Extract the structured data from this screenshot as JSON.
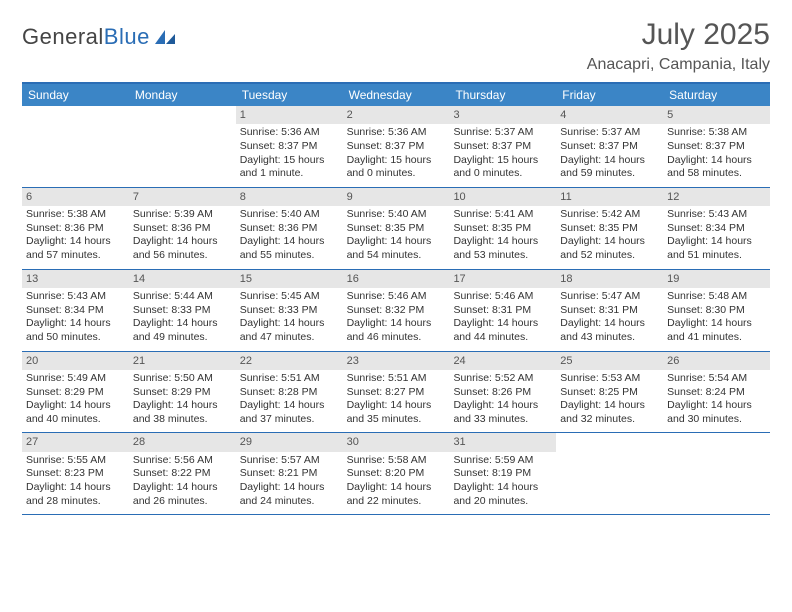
{
  "logo": {
    "text_gray": "General",
    "text_blue": "Blue"
  },
  "title": "July 2025",
  "location": "Anacapri, Campania, Italy",
  "colors": {
    "header_bg": "#3b85c6",
    "rule": "#2a6db5",
    "daynum_bg": "#e6e6e6",
    "text": "#333333",
    "muted": "#555555"
  },
  "weekdays": [
    "Sunday",
    "Monday",
    "Tuesday",
    "Wednesday",
    "Thursday",
    "Friday",
    "Saturday"
  ],
  "weeks": [
    [
      {
        "n": "",
        "sr": "",
        "ss": "",
        "dl": ""
      },
      {
        "n": "",
        "sr": "",
        "ss": "",
        "dl": ""
      },
      {
        "n": "1",
        "sr": "Sunrise: 5:36 AM",
        "ss": "Sunset: 8:37 PM",
        "dl": "Daylight: 15 hours and 1 minute."
      },
      {
        "n": "2",
        "sr": "Sunrise: 5:36 AM",
        "ss": "Sunset: 8:37 PM",
        "dl": "Daylight: 15 hours and 0 minutes."
      },
      {
        "n": "3",
        "sr": "Sunrise: 5:37 AM",
        "ss": "Sunset: 8:37 PM",
        "dl": "Daylight: 15 hours and 0 minutes."
      },
      {
        "n": "4",
        "sr": "Sunrise: 5:37 AM",
        "ss": "Sunset: 8:37 PM",
        "dl": "Daylight: 14 hours and 59 minutes."
      },
      {
        "n": "5",
        "sr": "Sunrise: 5:38 AM",
        "ss": "Sunset: 8:37 PM",
        "dl": "Daylight: 14 hours and 58 minutes."
      }
    ],
    [
      {
        "n": "6",
        "sr": "Sunrise: 5:38 AM",
        "ss": "Sunset: 8:36 PM",
        "dl": "Daylight: 14 hours and 57 minutes."
      },
      {
        "n": "7",
        "sr": "Sunrise: 5:39 AM",
        "ss": "Sunset: 8:36 PM",
        "dl": "Daylight: 14 hours and 56 minutes."
      },
      {
        "n": "8",
        "sr": "Sunrise: 5:40 AM",
        "ss": "Sunset: 8:36 PM",
        "dl": "Daylight: 14 hours and 55 minutes."
      },
      {
        "n": "9",
        "sr": "Sunrise: 5:40 AM",
        "ss": "Sunset: 8:35 PM",
        "dl": "Daylight: 14 hours and 54 minutes."
      },
      {
        "n": "10",
        "sr": "Sunrise: 5:41 AM",
        "ss": "Sunset: 8:35 PM",
        "dl": "Daylight: 14 hours and 53 minutes."
      },
      {
        "n": "11",
        "sr": "Sunrise: 5:42 AM",
        "ss": "Sunset: 8:35 PM",
        "dl": "Daylight: 14 hours and 52 minutes."
      },
      {
        "n": "12",
        "sr": "Sunrise: 5:43 AM",
        "ss": "Sunset: 8:34 PM",
        "dl": "Daylight: 14 hours and 51 minutes."
      }
    ],
    [
      {
        "n": "13",
        "sr": "Sunrise: 5:43 AM",
        "ss": "Sunset: 8:34 PM",
        "dl": "Daylight: 14 hours and 50 minutes."
      },
      {
        "n": "14",
        "sr": "Sunrise: 5:44 AM",
        "ss": "Sunset: 8:33 PM",
        "dl": "Daylight: 14 hours and 49 minutes."
      },
      {
        "n": "15",
        "sr": "Sunrise: 5:45 AM",
        "ss": "Sunset: 8:33 PM",
        "dl": "Daylight: 14 hours and 47 minutes."
      },
      {
        "n": "16",
        "sr": "Sunrise: 5:46 AM",
        "ss": "Sunset: 8:32 PM",
        "dl": "Daylight: 14 hours and 46 minutes."
      },
      {
        "n": "17",
        "sr": "Sunrise: 5:46 AM",
        "ss": "Sunset: 8:31 PM",
        "dl": "Daylight: 14 hours and 44 minutes."
      },
      {
        "n": "18",
        "sr": "Sunrise: 5:47 AM",
        "ss": "Sunset: 8:31 PM",
        "dl": "Daylight: 14 hours and 43 minutes."
      },
      {
        "n": "19",
        "sr": "Sunrise: 5:48 AM",
        "ss": "Sunset: 8:30 PM",
        "dl": "Daylight: 14 hours and 41 minutes."
      }
    ],
    [
      {
        "n": "20",
        "sr": "Sunrise: 5:49 AM",
        "ss": "Sunset: 8:29 PM",
        "dl": "Daylight: 14 hours and 40 minutes."
      },
      {
        "n": "21",
        "sr": "Sunrise: 5:50 AM",
        "ss": "Sunset: 8:29 PM",
        "dl": "Daylight: 14 hours and 38 minutes."
      },
      {
        "n": "22",
        "sr": "Sunrise: 5:51 AM",
        "ss": "Sunset: 8:28 PM",
        "dl": "Daylight: 14 hours and 37 minutes."
      },
      {
        "n": "23",
        "sr": "Sunrise: 5:51 AM",
        "ss": "Sunset: 8:27 PM",
        "dl": "Daylight: 14 hours and 35 minutes."
      },
      {
        "n": "24",
        "sr": "Sunrise: 5:52 AM",
        "ss": "Sunset: 8:26 PM",
        "dl": "Daylight: 14 hours and 33 minutes."
      },
      {
        "n": "25",
        "sr": "Sunrise: 5:53 AM",
        "ss": "Sunset: 8:25 PM",
        "dl": "Daylight: 14 hours and 32 minutes."
      },
      {
        "n": "26",
        "sr": "Sunrise: 5:54 AM",
        "ss": "Sunset: 8:24 PM",
        "dl": "Daylight: 14 hours and 30 minutes."
      }
    ],
    [
      {
        "n": "27",
        "sr": "Sunrise: 5:55 AM",
        "ss": "Sunset: 8:23 PM",
        "dl": "Daylight: 14 hours and 28 minutes."
      },
      {
        "n": "28",
        "sr": "Sunrise: 5:56 AM",
        "ss": "Sunset: 8:22 PM",
        "dl": "Daylight: 14 hours and 26 minutes."
      },
      {
        "n": "29",
        "sr": "Sunrise: 5:57 AM",
        "ss": "Sunset: 8:21 PM",
        "dl": "Daylight: 14 hours and 24 minutes."
      },
      {
        "n": "30",
        "sr": "Sunrise: 5:58 AM",
        "ss": "Sunset: 8:20 PM",
        "dl": "Daylight: 14 hours and 22 minutes."
      },
      {
        "n": "31",
        "sr": "Sunrise: 5:59 AM",
        "ss": "Sunset: 8:19 PM",
        "dl": "Daylight: 14 hours and 20 minutes."
      },
      {
        "n": "",
        "sr": "",
        "ss": "",
        "dl": ""
      },
      {
        "n": "",
        "sr": "",
        "ss": "",
        "dl": ""
      }
    ]
  ]
}
